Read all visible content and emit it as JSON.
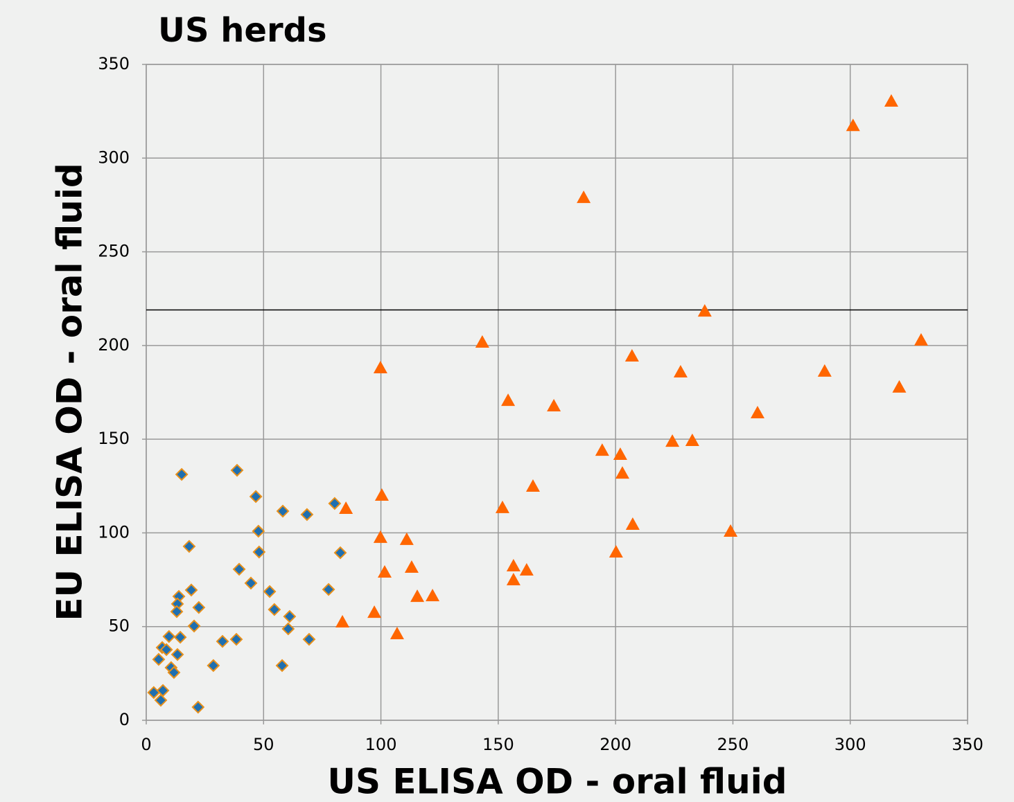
{
  "chart_data": {
    "type": "scatter",
    "title": "US herds",
    "xlabel": "US ELISA OD - oral fluid",
    "ylabel": "EU ELISA OD - oral fluid",
    "xlim": [
      0,
      350
    ],
    "ylim": [
      0,
      350
    ],
    "xticks": [
      0,
      50,
      100,
      150,
      200,
      250,
      300,
      350
    ],
    "yticks": [
      0,
      50,
      100,
      150,
      200,
      250,
      300,
      350
    ],
    "grid": true,
    "reference_line": 219,
    "series": [
      {
        "color": "#1f6fb0",
        "edge_color": "#e8901a",
        "marker": "diamond",
        "x": [
          15.1,
          38.7,
          46.7,
          58.2,
          68.5,
          80.3,
          47.8,
          48.1,
          82.7,
          18.3,
          39.6,
          44.6,
          52.6,
          77.7,
          19.2,
          13.9,
          13.3,
          13.0,
          22.4,
          54.6,
          61.1,
          20.4,
          60.5,
          9.7,
          14.5,
          32.5,
          38.4,
          69.4,
          6.8,
          8.6,
          13.3,
          5.3,
          28.6,
          57.9,
          10.6,
          11.8,
          3.2,
          7.1,
          6.2,
          22.1
        ],
        "values": [
          131.2,
          133.4,
          119.4,
          111.6,
          109.8,
          115.7,
          100.9,
          89.8,
          89.4,
          92.8,
          80.6,
          73.2,
          68.7,
          69.8,
          69.5,
          66.1,
          62.1,
          58.0,
          60.2,
          59.1,
          55.4,
          50.3,
          48.8,
          44.7,
          44.3,
          42.1,
          43.2,
          43.2,
          38.8,
          37.7,
          35.1,
          32.5,
          29.2,
          29.2,
          28.1,
          25.5,
          14.8,
          15.9,
          10.7,
          7.0
        ]
      },
      {
        "color": "#ff6600",
        "marker": "triangle",
        "x": [
          317.5,
          301.2,
          186.4,
          238.0,
          143.2,
          330.2,
          99.8,
          207.0,
          227.7,
          289.1,
          154.2,
          173.7,
          260.5,
          320.9,
          224.2,
          232.7,
          194.3,
          202.0,
          202.9,
          164.8,
          100.4,
          151.8,
          85.1,
          207.3,
          249.0,
          99.8,
          111.0,
          200.2,
          156.5,
          113.1,
          162.1,
          101.6,
          156.5,
          115.5,
          122.0,
          97.2,
          83.6,
          106.9
        ],
        "values": [
          330.4,
          317.4,
          279.0,
          218.4,
          201.8,
          202.9,
          188.1,
          194.4,
          185.9,
          186.3,
          170.7,
          167.8,
          164.1,
          177.8,
          148.9,
          149.3,
          144.1,
          141.9,
          131.9,
          124.9,
          120.1,
          113.5,
          113.1,
          104.6,
          100.9,
          97.6,
          96.5,
          89.8,
          82.4,
          81.7,
          80.2,
          79.1,
          75.0,
          66.1,
          66.5,
          57.6,
          52.5,
          46.2
        ]
      }
    ]
  }
}
